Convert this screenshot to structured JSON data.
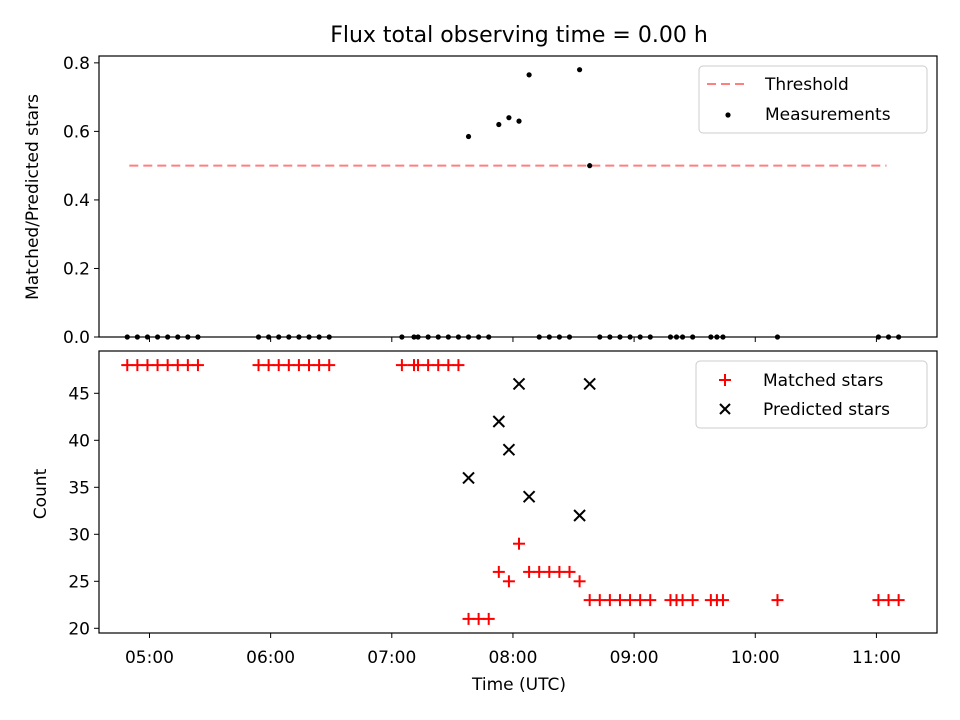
{
  "title": "Flux total observing time = 0.00 h",
  "chart_data": [
    {
      "type": "scatter",
      "ylabel": "Matched/Predicted stars",
      "ylim": [
        0,
        0.82
      ],
      "yticks": [
        0.0,
        0.2,
        0.4,
        0.6,
        0.8
      ],
      "ytick_labels": [
        "0.0",
        "0.2",
        "0.4",
        "0.6",
        "0.8"
      ],
      "legend_position": "upper right",
      "threshold": {
        "name": "Threshold",
        "value": 0.5,
        "color": "#ff7f7f",
        "x_range": [
          "04:50",
          "11:05"
        ]
      },
      "series": [
        {
          "name": "Measurements",
          "marker": "dot",
          "color": "#000000",
          "points": [
            [
              "04:49",
              0
            ],
            [
              "04:54",
              0
            ],
            [
              "04:59",
              0
            ],
            [
              "05:04",
              0
            ],
            [
              "05:09",
              0
            ],
            [
              "05:14",
              0
            ],
            [
              "05:19",
              0
            ],
            [
              "05:24",
              0
            ],
            [
              "05:54",
              0
            ],
            [
              "05:59",
              0
            ],
            [
              "06:04",
              0
            ],
            [
              "06:09",
              0
            ],
            [
              "06:14",
              0
            ],
            [
              "06:19",
              0
            ],
            [
              "06:24",
              0
            ],
            [
              "06:29",
              0
            ],
            [
              "07:05",
              0
            ],
            [
              "07:11",
              0
            ],
            [
              "07:13",
              0
            ],
            [
              "07:18",
              0
            ],
            [
              "07:23",
              0
            ],
            [
              "07:28",
              0
            ],
            [
              "07:33",
              0
            ],
            [
              "07:38",
              0
            ],
            [
              "07:38",
              0.585
            ],
            [
              "07:43",
              0
            ],
            [
              "07:48",
              0
            ],
            [
              "07:53",
              0.62
            ],
            [
              "07:58",
              0.64
            ],
            [
              "08:03",
              0.63
            ],
            [
              "08:08",
              0.765
            ],
            [
              "08:13",
              0
            ],
            [
              "08:18",
              0
            ],
            [
              "08:23",
              0
            ],
            [
              "08:28",
              0
            ],
            [
              "08:33",
              0.78
            ],
            [
              "08:38",
              0.5
            ],
            [
              "08:43",
              0
            ],
            [
              "08:48",
              0
            ],
            [
              "08:53",
              0
            ],
            [
              "08:58",
              0
            ],
            [
              "09:03",
              0
            ],
            [
              "09:08",
              0
            ],
            [
              "09:18",
              0
            ],
            [
              "09:21",
              0
            ],
            [
              "09:24",
              0
            ],
            [
              "09:29",
              0
            ],
            [
              "09:38",
              0
            ],
            [
              "09:41",
              0
            ],
            [
              "09:44",
              0
            ],
            [
              "10:11",
              0
            ],
            [
              "11:01",
              0
            ],
            [
              "11:06",
              0
            ],
            [
              "11:11",
              0
            ]
          ]
        }
      ]
    },
    {
      "type": "scatter",
      "xlabel": "Time (UTC)",
      "ylabel": "Count",
      "ylim": [
        19.5,
        49.5
      ],
      "yticks": [
        20,
        25,
        30,
        35,
        40,
        45
      ],
      "ytick_labels": [
        "20",
        "25",
        "30",
        "35",
        "40",
        "45"
      ],
      "xlim": [
        "04:35",
        "11:30"
      ],
      "xticks": [
        "05:00",
        "06:00",
        "07:00",
        "08:00",
        "09:00",
        "10:00",
        "11:00"
      ],
      "xtick_labels": [
        "05:00",
        "06:00",
        "07:00",
        "08:00",
        "09:00",
        "10:00",
        "11:00"
      ],
      "legend_position": "upper right",
      "series": [
        {
          "name": "Matched stars",
          "marker": "plus",
          "color": "#ff0000",
          "points": [
            [
              "04:49",
              48
            ],
            [
              "04:54",
              48
            ],
            [
              "04:59",
              48
            ],
            [
              "05:04",
              48
            ],
            [
              "05:09",
              48
            ],
            [
              "05:14",
              48
            ],
            [
              "05:19",
              48
            ],
            [
              "05:24",
              48
            ],
            [
              "05:54",
              48
            ],
            [
              "05:59",
              48
            ],
            [
              "06:04",
              48
            ],
            [
              "06:09",
              48
            ],
            [
              "06:14",
              48
            ],
            [
              "06:19",
              48
            ],
            [
              "06:24",
              48
            ],
            [
              "06:29",
              48
            ],
            [
              "07:05",
              48
            ],
            [
              "07:11",
              48
            ],
            [
              "07:13",
              48
            ],
            [
              "07:18",
              48
            ],
            [
              "07:23",
              48
            ],
            [
              "07:28",
              48
            ],
            [
              "07:33",
              48
            ],
            [
              "07:38",
              21
            ],
            [
              "07:43",
              21
            ],
            [
              "07:48",
              21
            ],
            [
              "07:53",
              26
            ],
            [
              "07:58",
              25
            ],
            [
              "08:03",
              29
            ],
            [
              "08:08",
              26
            ],
            [
              "08:13",
              26
            ],
            [
              "08:18",
              26
            ],
            [
              "08:23",
              26
            ],
            [
              "08:28",
              26
            ],
            [
              "08:33",
              25
            ],
            [
              "08:38",
              23
            ],
            [
              "08:43",
              23
            ],
            [
              "08:48",
              23
            ],
            [
              "08:53",
              23
            ],
            [
              "08:58",
              23
            ],
            [
              "09:03",
              23
            ],
            [
              "09:08",
              23
            ],
            [
              "09:18",
              23
            ],
            [
              "09:21",
              23
            ],
            [
              "09:24",
              23
            ],
            [
              "09:29",
              23
            ],
            [
              "09:38",
              23
            ],
            [
              "09:41",
              23
            ],
            [
              "09:44",
              23
            ],
            [
              "10:11",
              23
            ],
            [
              "11:01",
              23
            ],
            [
              "11:06",
              23
            ],
            [
              "11:11",
              23
            ]
          ]
        },
        {
          "name": "Predicted stars",
          "marker": "x",
          "color": "#000000",
          "points": [
            [
              "07:38",
              36
            ],
            [
              "07:53",
              42
            ],
            [
              "07:58",
              39
            ],
            [
              "08:03",
              46
            ],
            [
              "08:08",
              34
            ],
            [
              "08:33",
              32
            ],
            [
              "08:38",
              46
            ]
          ]
        }
      ]
    }
  ]
}
